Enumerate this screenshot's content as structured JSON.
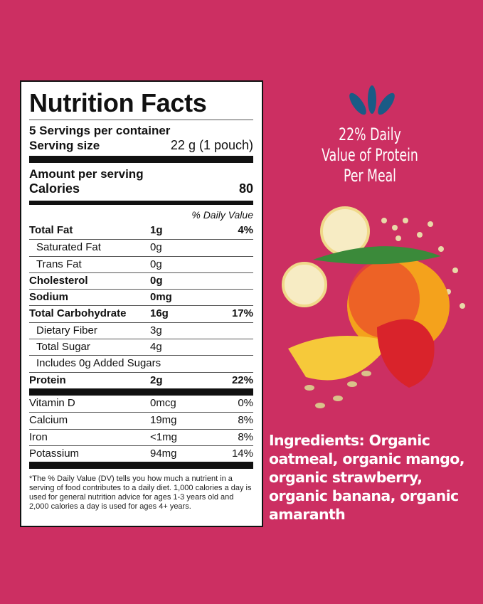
{
  "label": {
    "title": "Nutrition Facts",
    "servings": "5 Servings per container",
    "serving_size_label": "Serving size",
    "serving_size_value": "22 g (1 pouch)",
    "amount_per_serving": "Amount per serving",
    "calories_label": "Calories",
    "calories_value": "80",
    "dv_header": "% Daily Value",
    "nutrients": [
      {
        "name": "Total Fat",
        "amount": "1g",
        "dv": "4%",
        "bold": true
      },
      {
        "name": "Saturated Fat",
        "amount": "0g",
        "dv": "",
        "indent": true
      },
      {
        "name": "Trans Fat",
        "amount": "0g",
        "dv": "",
        "indent": true
      },
      {
        "name": "Cholesterol",
        "amount": "0g",
        "dv": "",
        "bold": true
      },
      {
        "name": "Sodium",
        "amount": "0mg",
        "dv": "",
        "bold": true
      },
      {
        "name": "Total Carbohydrate",
        "amount": "16g",
        "dv": "17%",
        "bold": true
      },
      {
        "name": "Dietary Fiber",
        "amount": "3g",
        "dv": "",
        "indent": true
      },
      {
        "name": "Total Sugar",
        "amount": "4g",
        "dv": "",
        "indent": true
      },
      {
        "name": "Includes 0g Added Sugars",
        "amount": "",
        "dv": "",
        "indent": true
      },
      {
        "name": "Protein",
        "amount": "2g",
        "dv": "22%",
        "bold": true
      }
    ],
    "vitamins": [
      {
        "name": "Vitamin D",
        "amount": "0mcg",
        "dv": "0%"
      },
      {
        "name": "Calcium",
        "amount": "19mg",
        "dv": "8%"
      },
      {
        "name": "Iron",
        "amount": "<1mg",
        "dv": "8%"
      },
      {
        "name": "Potassium",
        "amount": "94mg",
        "dv": "14%"
      }
    ],
    "footnote": "*The % Daily Value (DV) tells you how much a nutrient in a serving of food contributes to a daily diet. 1,000 calories a day is used for general nutrition advice for ages 1-3 years old and 2,000 calories a day is used for ages 4+ years."
  },
  "promo": {
    "line1": "22% Daily",
    "line2": "Value of Protein",
    "line3": "Per Meal"
  },
  "ingredients": "Ingredients: Organic oatmeal, organic mango, organic strawberry, organic banana, organic amaranth",
  "colors": {
    "background": "#cc2f62",
    "accent": "#1a5b86"
  }
}
